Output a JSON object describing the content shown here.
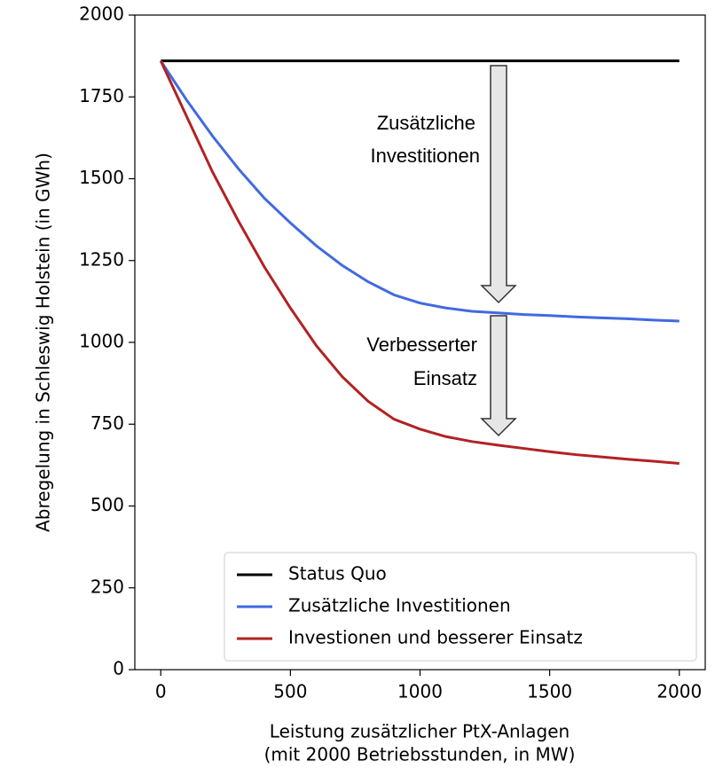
{
  "chart_data": {
    "type": "line",
    "xlabel": [
      "Leistung zusätzlicher PtX-Anlagen",
      "(mit 2000 Betriebsstunden, in MW)"
    ],
    "ylabel": "Abregelung in Schleswig Holstein (in GWh)",
    "x": [
      0,
      100,
      200,
      300,
      400,
      500,
      600,
      700,
      800,
      900,
      1000,
      1100,
      1200,
      1300,
      1400,
      1500,
      1600,
      1700,
      1800,
      1900,
      2000
    ],
    "series": [
      {
        "name": "Status Quo",
        "color": "#000000",
        "values": [
          1860,
          1860,
          1860,
          1860,
          1860,
          1860,
          1860,
          1860,
          1860,
          1860,
          1860,
          1860,
          1860,
          1860,
          1860,
          1860,
          1860,
          1860,
          1860,
          1860,
          1860
        ]
      },
      {
        "name": "Zusätzliche Investitionen",
        "color": "#4169e1",
        "values": [
          1860,
          1740,
          1630,
          1530,
          1440,
          1365,
          1295,
          1235,
          1185,
          1145,
          1120,
          1105,
          1095,
          1090,
          1085,
          1082,
          1078,
          1075,
          1072,
          1068,
          1065
        ]
      },
      {
        "name": "Investionen und besserer Einsatz",
        "color": "#b22222",
        "values": [
          1860,
          1690,
          1520,
          1370,
          1230,
          1105,
          990,
          895,
          820,
          765,
          735,
          712,
          697,
          686,
          676,
          666,
          657,
          650,
          643,
          637,
          630
        ]
      }
    ],
    "xlim": [
      -100,
      2100
    ],
    "xticks": [
      0,
      500,
      1000,
      1500,
      2000
    ],
    "ylim": [
      0,
      2000
    ],
    "yticks": [
      0,
      250,
      500,
      750,
      1000,
      1250,
      1500,
      1750,
      2000
    ],
    "legend": "lower right",
    "annotations": [
      {
        "lines": [
          "Zusätzliche",
          "Investitionen"
        ]
      },
      {
        "lines": [
          "Verbesserter",
          "Einsatz"
        ]
      }
    ]
  }
}
